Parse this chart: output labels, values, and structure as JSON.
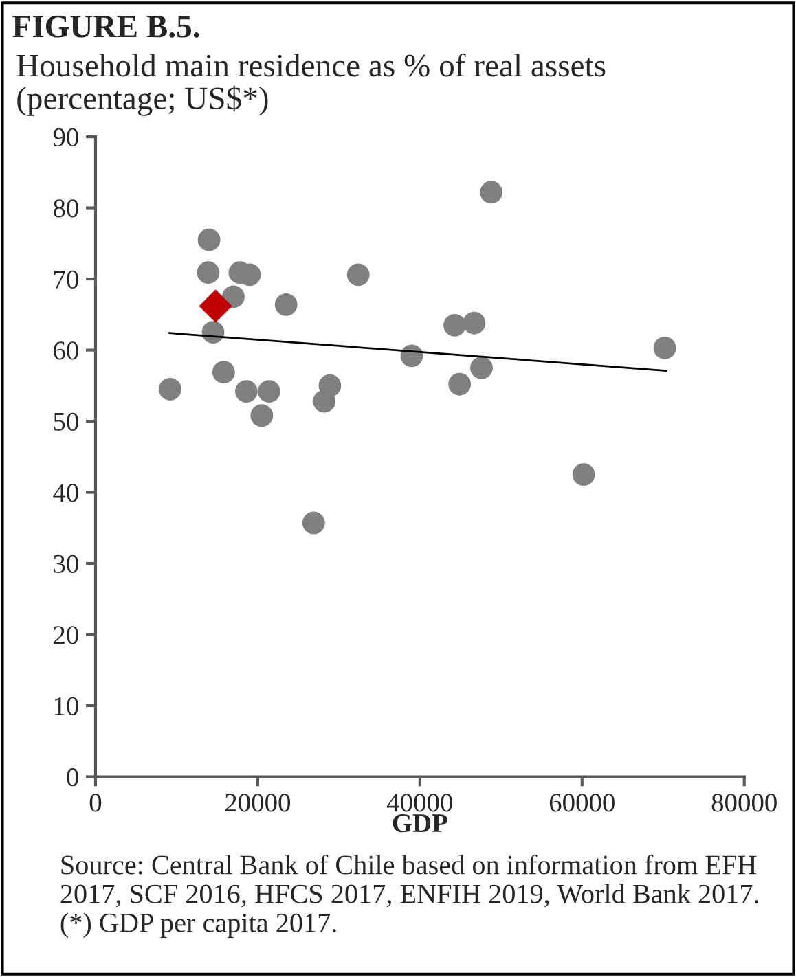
{
  "chart_data": {
    "type": "scatter",
    "title": "FIGURE B.5.",
    "subtitle": "Household main residence as % of real assets\n(percentage; US$*)",
    "xlabel": "GDP",
    "annotations": [
      "Source: Central Bank of Chile based on information from EFH 2017, SCF 2016, HFCS 2017, ENFIH 2019, World Bank 2017. (*) GDP per capita 2017."
    ],
    "series": [
      {
        "color": "#808080",
        "marker": "circle",
        "x": [
          14000,
          13900,
          17800,
          19000,
          17000,
          23500,
          14500,
          32400,
          39000,
          15800,
          9200,
          18600,
          21400,
          20500,
          28900,
          28200,
          26900,
          48800,
          44300,
          46700,
          47600,
          44900,
          60200,
          70200
        ],
        "values": [
          75.5,
          70.9,
          70.9,
          70.6,
          67.5,
          66.4,
          62.5,
          70.6,
          59.2,
          56.9,
          54.5,
          54.2,
          54.2,
          50.8,
          55.0,
          52.8,
          35.7,
          82.2,
          63.5,
          63.8,
          57.5,
          55.2,
          42.5,
          60.3
        ]
      },
      {
        "color": "#c00000",
        "marker": "diamond",
        "x": [
          14800
        ],
        "values": [
          66.2
        ]
      },
      {
        "type": "line",
        "color": "#000000",
        "marker": "none",
        "line_style": "solid",
        "x": [
          9100,
          70400
        ],
        "values": [
          62.4,
          57.1
        ]
      }
    ],
    "xlim": [
      0,
      80000
    ],
    "xticks": [
      0,
      20000,
      40000,
      60000,
      80000
    ],
    "ylim": [
      0,
      90
    ],
    "yticks": [
      0,
      10,
      20,
      30,
      40,
      50,
      60,
      70,
      80,
      90
    ],
    "grid": false,
    "legend": false
  }
}
